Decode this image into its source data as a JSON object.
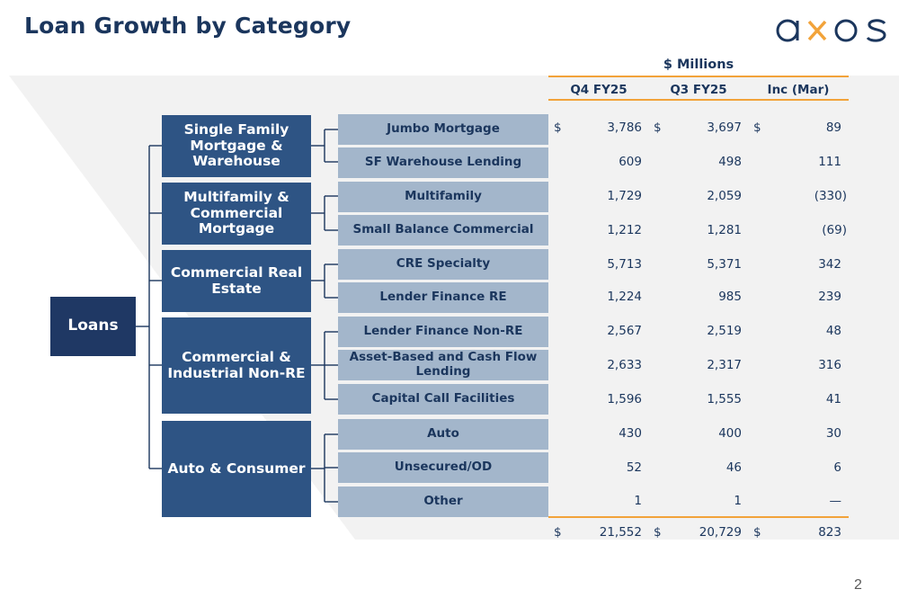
{
  "title": "Loan Growth by Category",
  "brand": {
    "name": "axos",
    "text_color": "#1b365d",
    "accent_color": "#f2a33a"
  },
  "page_number": "2",
  "colors": {
    "root": "#1f3864",
    "category": "#2e5484",
    "subcategory": "#a3b6cb",
    "rule": "#f2a33a"
  },
  "root_label": "Loans",
  "table": {
    "units": "$ Millions",
    "columns": [
      "Q4 FY25",
      "Q3 FY25",
      "Inc (Mar)"
    ],
    "currency_symbol": "$"
  },
  "categories": [
    {
      "label": "Single Family Mortgage & Warehouse",
      "items": [
        {
          "label": "Jumbo Mortgage",
          "q4": "3,786",
          "q3": "3,697",
          "inc": "89"
        },
        {
          "label": "SF Warehouse Lending",
          "q4": "609",
          "q3": "498",
          "inc": "111"
        }
      ]
    },
    {
      "label": "Multifamily & Commercial Mortgage",
      "items": [
        {
          "label": "Multifamily",
          "q4": "1,729",
          "q3": "2,059",
          "inc": "(330)"
        },
        {
          "label": "Small Balance Commercial",
          "q4": "1,212",
          "q3": "1,281",
          "inc": "(69)"
        }
      ]
    },
    {
      "label": "Commercial Real Estate",
      "items": [
        {
          "label": "CRE Specialty",
          "q4": "5,713",
          "q3": "5,371",
          "inc": "342"
        },
        {
          "label": "Lender Finance RE",
          "q4": "1,224",
          "q3": "985",
          "inc": "239"
        }
      ]
    },
    {
      "label": "Commercial & Industrial Non-RE",
      "items": [
        {
          "label": "Lender Finance Non-RE",
          "q4": "2,567",
          "q3": "2,519",
          "inc": "48"
        },
        {
          "label": "Asset-Based and Cash Flow Lending",
          "q4": "2,633",
          "q3": "2,317",
          "inc": "316"
        },
        {
          "label": "Capital Call Facilities",
          "q4": "1,596",
          "q3": "1,555",
          "inc": "41"
        }
      ]
    },
    {
      "label": "Auto & Consumer",
      "items": [
        {
          "label": "Auto",
          "q4": "430",
          "q3": "400",
          "inc": "30"
        },
        {
          "label": "Unsecured/OD",
          "q4": "52",
          "q3": "46",
          "inc": "6"
        },
        {
          "label": "Other",
          "q4": "1",
          "q3": "1",
          "inc": "—"
        }
      ]
    }
  ],
  "totals": {
    "q4": "21,552",
    "q3": "20,729",
    "inc": "823"
  }
}
